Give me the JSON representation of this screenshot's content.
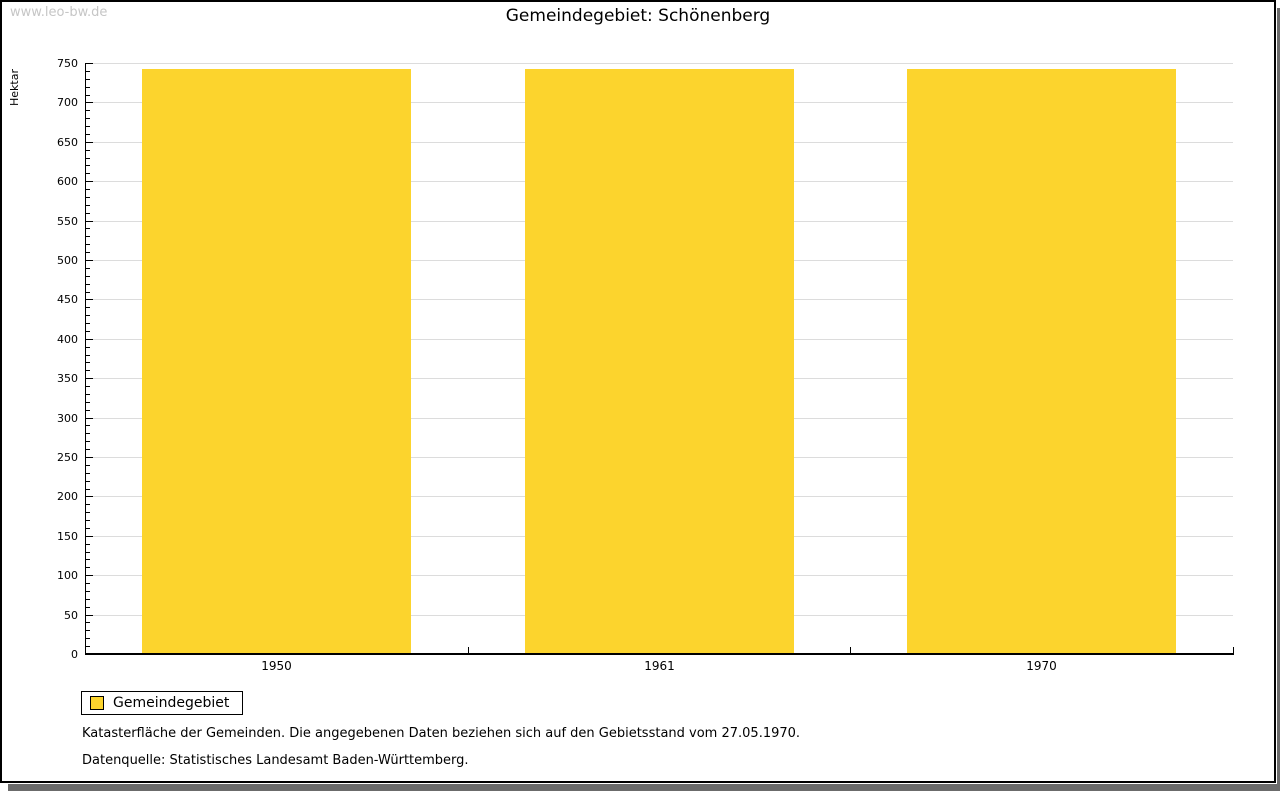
{
  "watermark": "www.leo-bw.de",
  "title": "Gemeindegebiet: Schönenberg",
  "legend": {
    "label": "Gemeindegebiet",
    "swatch_color": "#FCD42D"
  },
  "captions": [
    "Katasterfläche der Gemeinden. Die angegebenen Daten beziehen sich auf den Gebietsstand vom 27.05.1970.",
    "Datenquelle: Statistisches Landesamt Baden-Württemberg."
  ],
  "chart_data": {
    "type": "bar",
    "title": "Gemeindegebiet: Schönenberg",
    "categories": [
      "1950",
      "1961",
      "1970"
    ],
    "series": [
      {
        "name": "Gemeindegebiet",
        "values": [
          742,
          742,
          742
        ]
      }
    ],
    "xlabel": "",
    "ylabel": "Hektar",
    "ylim": [
      0,
      750
    ],
    "y_major_step": 50,
    "y_minor_step": 10,
    "grid": true,
    "legend_position": "bottom-left",
    "colors": {
      "bar": "#FCD42D",
      "grid": "#DCDCDC",
      "axis": "#000000",
      "shadow": "#6B6B6B",
      "watermark": "#C6C6C6"
    }
  }
}
